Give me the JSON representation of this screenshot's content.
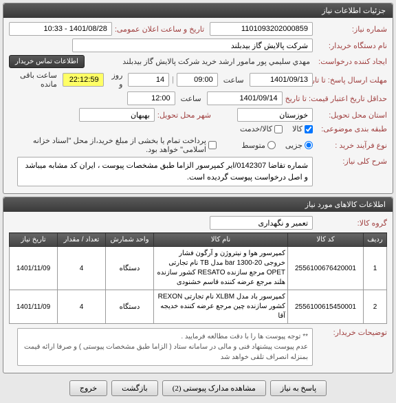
{
  "header1": "جزئیات اطلاعات نیاز",
  "fields": {
    "need_no_lbl": "شماره نیاز:",
    "need_no": "1101093202000859",
    "announce_lbl": "تاریخ و ساعت اعلان عمومی:",
    "announce": "1401/08/28 - 10:33",
    "dept_lbl": "نام دستگاه خریدار:",
    "dept": "شرکت پالایش گاز بیدبلند",
    "req_creator_lbl": "ایجاد کننده درخواست:",
    "req_creator": "مهدي سليمي پور مامور ارشد خريد شركت پالایش گاز بیدبلند",
    "contact_badge": "اطلاعات تماس خریدار",
    "deadline_lbl": "مهلت ارسال پاسخ: تا تاریخ:",
    "deadline_date": "1401/09/13",
    "time_lbl": "ساعت",
    "deadline_time": "09:00",
    "remain_days": "14",
    "remain_days_lbl": "روز و",
    "remain_time": "22:12:59",
    "remain_lbl": "ساعت باقی مانده",
    "valid_lbl": "حداقل تاریخ اعتبار قیمت: تا تاریخ",
    "valid_date": "1401/09/14",
    "valid_time": "12:00",
    "province_lbl": "استان محل تحویل:",
    "province": "خوزستان",
    "city_lbl": "شهر محل تحویل:",
    "city": "بهبهان",
    "subject_lbl": "طبقه بندی موضوعی:",
    "cb_goods": "کالا",
    "cb_service": "کالا/خدمت",
    "buy_type_lbl": "نوع فرآیند خرید :",
    "rb_urgent": "جزیی",
    "rb_mid": "متوسط",
    "pay_note": "پرداخت تمام یا بخشی از مبلغ خرید،از محل \"اسناد خزانه اسلامی\" خواهد بود.",
    "need_title_lbl": "شرح کلی نیاز:",
    "need_title": "شماره تقاضا 0142307/ایر کمپرسور   الزاما طبق مشخصات پیوست ، ایران کد مشابه میباشد و اصل درخواست پیوست گردیده است."
  },
  "header2": "اطلاعات کالاهای مورد نیاز",
  "group_lbl": "گروه کالا:",
  "group": "تعمیر و نگهداری",
  "table": {
    "cols": [
      "ردیف",
      "کد کالا",
      "نام کالا",
      "واحد شمارش",
      "تعداد / مقدار",
      "تاریخ نیاز"
    ],
    "rows": [
      {
        "n": "1",
        "code": "2556100676420001",
        "name": "کمپرسور هوا و نیتروژن و آرگون فشار خروجی 20-1300 bar مدل TB نام تجارتی OPET مرجع سازنده RESATO کشور سازنده هلند مرجع عرضه کننده قاسم خشنودی",
        "unit": "دستگاه",
        "qty": "4",
        "date": "1401/11/09"
      },
      {
        "n": "2",
        "code": "2556100615450001",
        "name": "کمپرسور باد مدل XLBM نام تجارتی REXON کشور سازنده چین مرجع عرضه کننده خدیجه آقا",
        "unit": "دستگاه",
        "qty": "4",
        "date": "1401/11/09"
      }
    ]
  },
  "buyer_note_lbl": "توضیحات خریدار:",
  "buyer_note": "** توجه پیوست ها  را با دقت مطالعه فرمایید .\nعدم پیوست پیشنهاد فنی و مالی در سامانه ستاد ( الزاما طبق مشخصات پیوستی )  و صرفا ارائه قیمت بمنزله انصراف تلقی خواهد شد",
  "buttons": {
    "reply": "پاسخ به نیاز",
    "attach": "مشاهده مدارک پیوستی (2)",
    "back": "بازگشت",
    "exit": "خروج"
  }
}
